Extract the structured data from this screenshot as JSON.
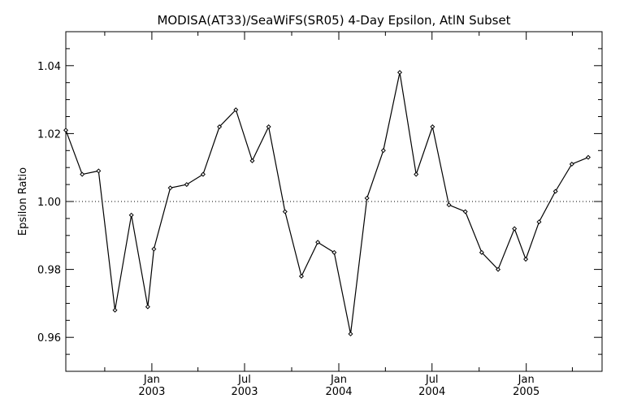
{
  "chart_data": {
    "type": "line",
    "title": "MODISA(AT33)/SeaWiFS(SR05) 4-Day Epsilon, AtlN Subset",
    "xlabel": "",
    "ylabel": "Epsilon Ratio",
    "ylim": [
      0.95,
      1.05
    ],
    "yticks": [
      0.96,
      0.98,
      1.0,
      1.02,
      1.04
    ],
    "ytick_labels": [
      "0.96",
      "0.98",
      "1.00",
      "1.02",
      "1.04"
    ],
    "xlim": [
      "2002-07-17",
      "2005-05-29"
    ],
    "xticks": [
      {
        "date": "2003-01-01",
        "month": "Jan",
        "year": "2003"
      },
      {
        "date": "2003-07-01",
        "month": "Jul",
        "year": "2003"
      },
      {
        "date": "2004-01-01",
        "month": "Jan",
        "year": "2004"
      },
      {
        "date": "2004-07-01",
        "month": "Jul",
        "year": "2004"
      },
      {
        "date": "2005-01-01",
        "month": "Jan",
        "year": "2005"
      }
    ],
    "reference_line": 1.0,
    "grid": false,
    "series": [
      {
        "x": [
          "2002-07-17",
          "2002-08-18",
          "2002-09-19",
          "2002-10-21",
          "2002-11-22",
          "2002-12-24",
          "2003-01-05",
          "2003-02-06",
          "2003-03-10",
          "2003-04-11",
          "2003-05-13",
          "2003-06-14",
          "2003-07-16",
          "2003-08-17",
          "2003-09-18",
          "2003-10-20",
          "2003-11-21",
          "2003-12-23",
          "2004-01-24",
          "2004-02-25",
          "2004-03-28",
          "2004-04-29",
          "2004-05-31",
          "2004-07-02",
          "2004-08-03",
          "2004-09-04",
          "2004-10-06",
          "2004-11-07",
          "2004-12-09",
          "2004-12-31",
          "2005-01-26",
          "2005-02-27",
          "2005-03-31",
          "2005-05-02"
        ],
        "y": [
          1.021,
          1.008,
          1.009,
          0.968,
          0.996,
          0.969,
          0.986,
          1.004,
          1.005,
          1.008,
          1.022,
          1.027,
          1.012,
          1.022,
          0.997,
          0.978,
          0.988,
          0.985,
          0.961,
          1.001,
          1.015,
          1.038,
          1.008,
          1.022,
          0.999,
          0.997,
          0.985,
          0.98,
          0.992,
          0.983,
          0.994,
          1.003,
          1.011,
          1.013
        ]
      }
    ]
  }
}
